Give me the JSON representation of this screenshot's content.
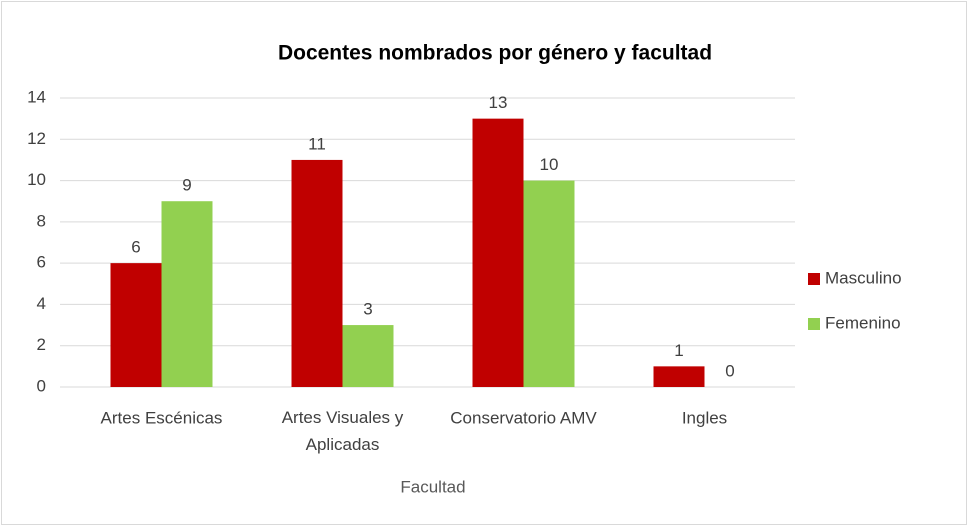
{
  "chart_data": {
    "type": "bar",
    "title": "Docentes nombrados por género y facultad",
    "x_label": "Facultad",
    "categories": [
      "Artes Escénicas",
      "Artes Visuales y Aplicadas",
      "Conservatorio AMV",
      "Ingles"
    ],
    "series": [
      {
        "name": "Masculino",
        "color": "#c00000",
        "values": [
          6,
          11,
          13,
          1
        ]
      },
      {
        "name": "Femenino",
        "color": "#92d050",
        "values": [
          9,
          3,
          10,
          0
        ]
      }
    ],
    "ylim": [
      0,
      14
    ],
    "yticks": [
      0,
      2,
      4,
      6,
      8,
      10,
      12,
      14
    ],
    "grid": true,
    "legend": "right"
  }
}
